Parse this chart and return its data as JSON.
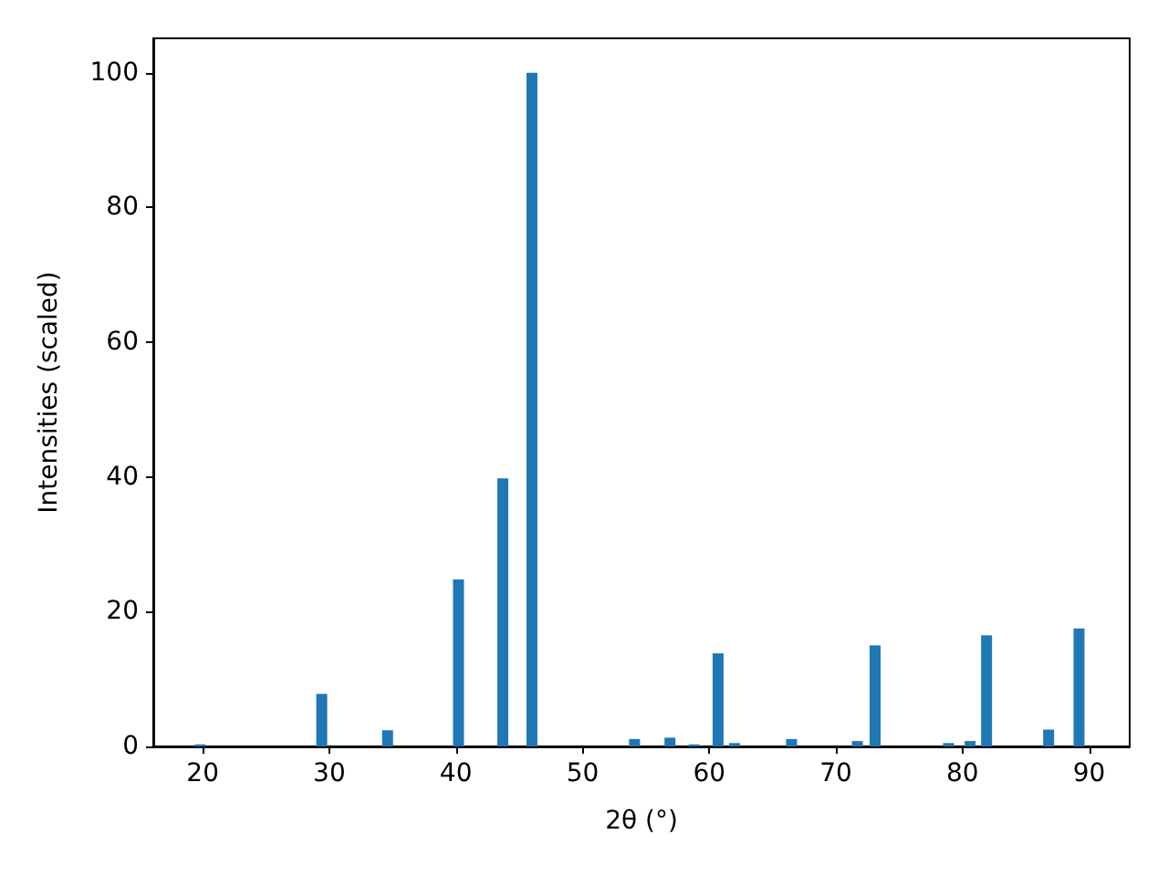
{
  "chart_data": {
    "type": "bar",
    "xlabel": "2θ (°)",
    "ylabel": "Intensities (scaled)",
    "color": "#1f77b4",
    "x": [
      19.8,
      29.4,
      34.6,
      40.2,
      43.7,
      46.0,
      54.1,
      56.9,
      58.8,
      60.7,
      62.0,
      66.5,
      71.7,
      73.1,
      78.9,
      80.6,
      81.9,
      86.8,
      89.2
    ],
    "values": [
      0.3,
      7.8,
      2.4,
      24.8,
      39.8,
      100,
      1.1,
      1.3,
      0.3,
      13.8,
      0.5,
      1.1,
      0.8,
      15.0,
      0.5,
      0.8,
      16.5,
      2.5,
      17.5
    ],
    "xlim": [
      16.1,
      93.2
    ],
    "xticks": [
      20,
      30,
      40,
      50,
      60,
      70,
      80,
      90
    ],
    "ylim": [
      0,
      105.1
    ],
    "yticks": [
      0,
      20,
      40,
      60,
      80,
      100
    ],
    "grid": false
  }
}
